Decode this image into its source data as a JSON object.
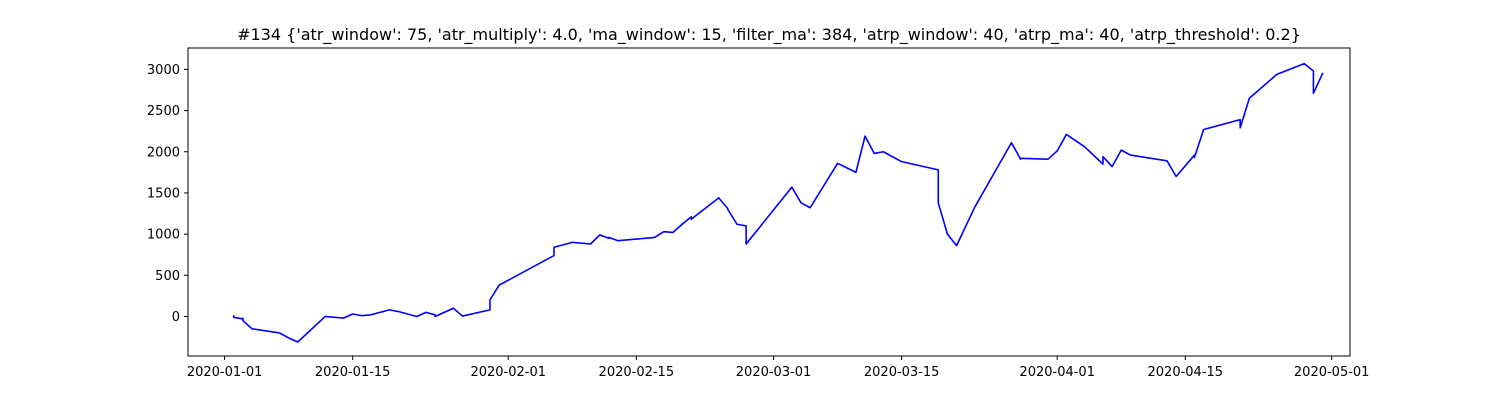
{
  "chart_data": {
    "type": "line",
    "title": "#134 {'atr_window': 75, 'atr_multiply': 4.0, 'ma_window': 15, 'filter_ma': 384, 'atrp_window': 40, 'atrp_ma': 40, 'atrp_threshold': 0.2}",
    "xlabel": "",
    "ylabel": "",
    "grid": false,
    "legend": "none",
    "line_color": "#0000ff",
    "xlim": [
      "2019-12-28",
      "2020-05-03"
    ],
    "ylim": [
      -480,
      3260
    ],
    "xticks": [
      "2020-01-01",
      "2020-01-15",
      "2020-02-01",
      "2020-02-15",
      "2020-03-01",
      "2020-03-15",
      "2020-04-01",
      "2020-04-15",
      "2020-05-01"
    ],
    "yticks": [
      0,
      500,
      1000,
      1500,
      2000,
      2500,
      3000
    ],
    "series": [
      {
        "x": [
          "2020-01-02",
          "2020-01-02",
          "2020-01-03",
          "2020-01-03",
          "2020-01-03",
          "2020-01-04",
          "2020-01-07",
          "2020-01-08",
          "2020-01-09",
          "2020-01-12",
          "2020-01-14",
          "2020-01-15",
          "2020-01-16",
          "2020-01-17",
          "2020-01-19",
          "2020-01-20",
          "2020-01-22",
          "2020-01-23",
          "2020-01-24",
          "2020-01-24",
          "2020-01-26",
          "2020-01-27",
          "2020-01-30",
          "2020-01-30",
          "2020-01-31",
          "2020-02-06",
          "2020-02-06",
          "2020-02-08",
          "2020-02-10",
          "2020-02-11",
          "2020-02-12",
          "2020-02-12",
          "2020-02-13",
          "2020-02-17",
          "2020-02-18",
          "2020-02-19",
          "2020-02-20",
          "2020-02-21",
          "2020-02-21",
          "2020-02-24",
          "2020-02-25",
          "2020-02-25",
          "2020-02-26",
          "2020-02-27",
          "2020-02-27",
          "2020-03-03",
          "2020-03-04",
          "2020-03-05",
          "2020-03-08",
          "2020-03-10",
          "2020-03-11",
          "2020-03-12",
          "2020-03-13",
          "2020-03-15",
          "2020-03-19",
          "2020-03-19",
          "2020-03-20",
          "2020-03-21",
          "2020-03-23",
          "2020-03-27",
          "2020-03-28",
          "2020-03-28",
          "2020-03-31",
          "2020-04-01",
          "2020-04-02",
          "2020-04-04",
          "2020-04-06",
          "2020-04-06",
          "2020-04-07",
          "2020-04-08",
          "2020-04-09",
          "2020-04-13",
          "2020-04-14",
          "2020-04-16",
          "2020-04-16",
          "2020-04-17",
          "2020-04-21",
          "2020-04-21",
          "2020-04-22",
          "2020-04-25",
          "2020-04-25",
          "2020-04-28",
          "2020-04-29",
          "2020-04-29",
          "2020-04-30"
        ],
        "y": [
          5,
          -10,
          -30,
          -20,
          -50,
          -150,
          -200,
          -260,
          -310,
          0,
          -20,
          30,
          10,
          20,
          80,
          60,
          0,
          50,
          20,
          0,
          100,
          5,
          80,
          200,
          380,
          740,
          840,
          900,
          880,
          990,
          950,
          960,
          920,
          960,
          1030,
          1020,
          1120,
          1210,
          1180,
          1440,
          1310,
          1300,
          1120,
          1100,
          880,
          1570,
          1380,
          1320,
          1860,
          1750,
          2190,
          1980,
          2000,
          1880,
          1780,
          1380,
          1000,
          860,
          1330,
          2110,
          1910,
          1920,
          1910,
          2010,
          2210,
          2060,
          1850,
          1940,
          1820,
          2020,
          1960,
          1890,
          1700,
          1960,
          1930,
          2270,
          2390,
          2290,
          2650,
          2940,
          2940,
          3070,
          2980,
          2710,
          2950
        ]
      }
    ]
  }
}
